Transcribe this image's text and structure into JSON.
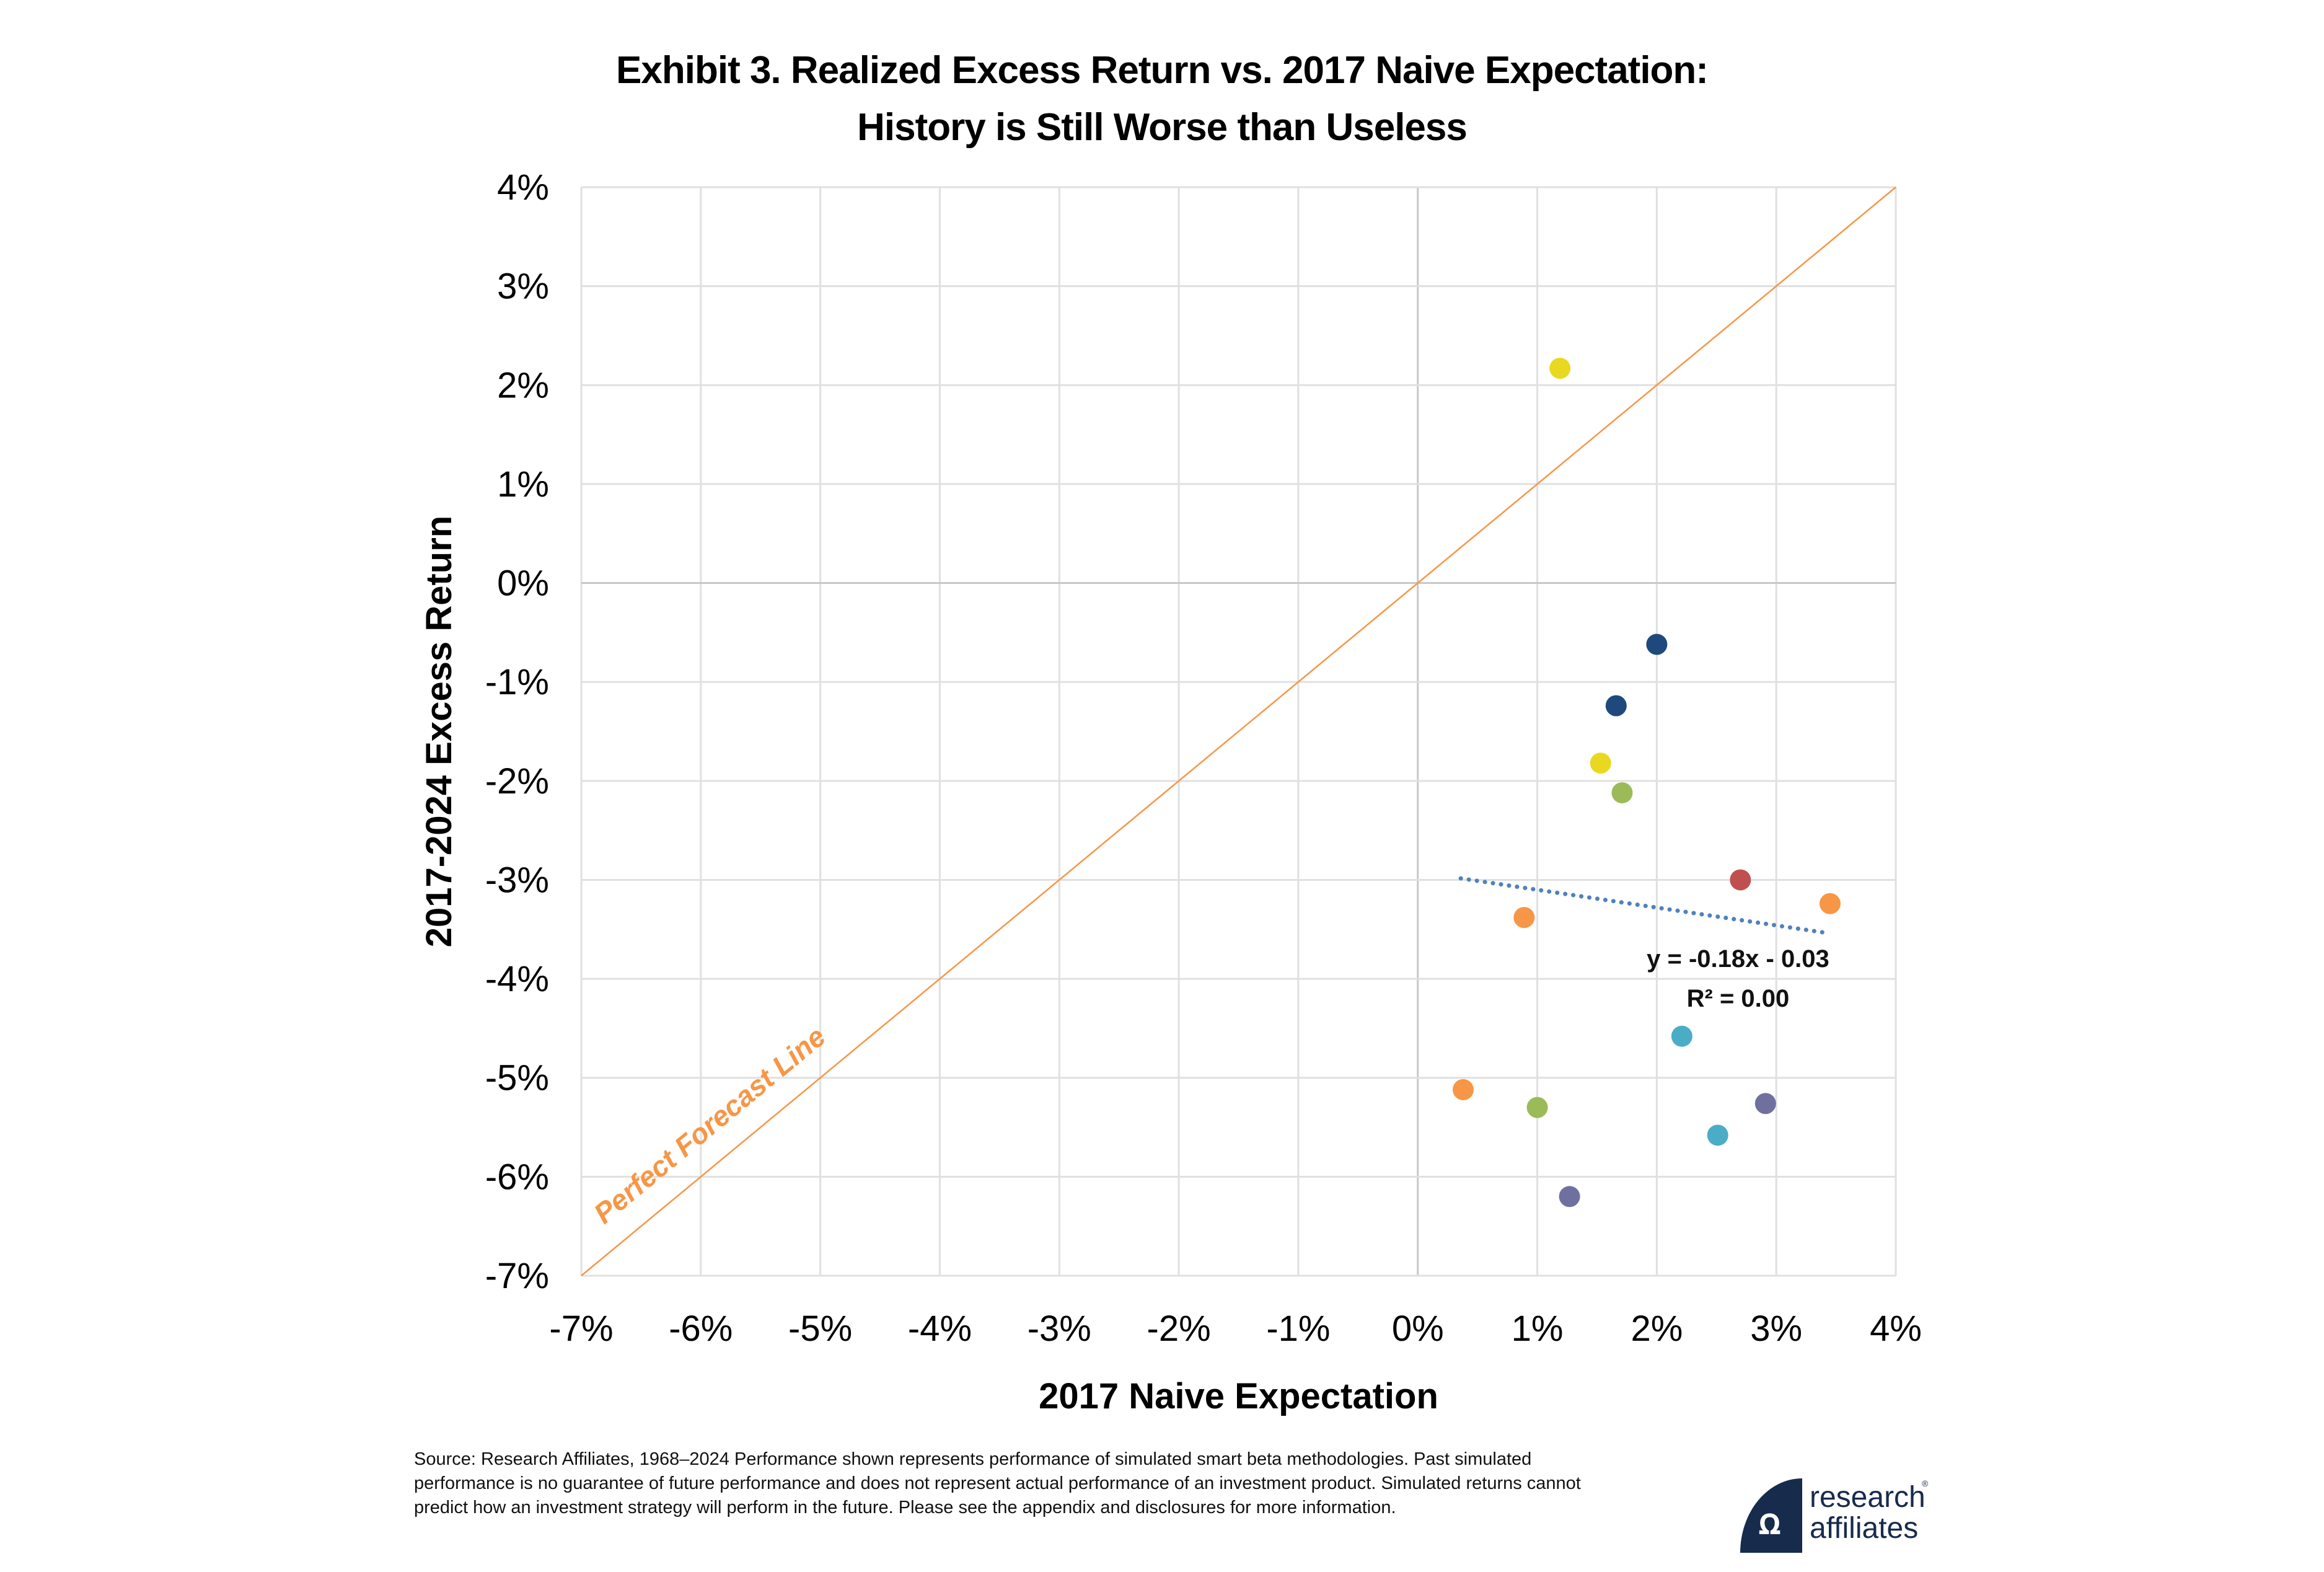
{
  "header": {
    "title_line1": "Exhibit 3. Realized Excess Return vs. 2017 Naive Expectation:",
    "title_line2": "History is Still Worse than Useless"
  },
  "chart_data": {
    "type": "scatter",
    "title": "Exhibit 3. Realized Excess Return vs. 2017 Naive Expectation: History is Still Worse than Useless",
    "xlabel": "2017 Naive Expectation",
    "ylabel": "2017-2024 Excess Return",
    "xlim": [
      -7,
      4
    ],
    "ylim": [
      -7,
      4
    ],
    "x_ticks": [
      "-7%",
      "-6%",
      "-5%",
      "-4%",
      "-3%",
      "-2%",
      "-1%",
      "0%",
      "1%",
      "2%",
      "3%",
      "4%"
    ],
    "y_ticks": [
      "4%",
      "3%",
      "2%",
      "1%",
      "0%",
      "-1%",
      "-2%",
      "-3%",
      "-4%",
      "-5%",
      "-6%",
      "-7%"
    ],
    "grid": true,
    "units": "percent",
    "points": [
      {
        "x": 1.19,
        "y": 2.17,
        "color": "#E8D920"
      },
      {
        "x": 2.0,
        "y": -0.62,
        "color": "#1F497D"
      },
      {
        "x": 1.66,
        "y": -1.24,
        "color": "#1F497D"
      },
      {
        "x": 1.53,
        "y": -1.82,
        "color": "#E8D920"
      },
      {
        "x": 1.71,
        "y": -2.12,
        "color": "#9BBB59"
      },
      {
        "x": 2.7,
        "y": -3.0,
        "color": "#C0504D"
      },
      {
        "x": 3.45,
        "y": -3.24,
        "color": "#F79646"
      },
      {
        "x": 0.89,
        "y": -3.38,
        "color": "#F79646"
      },
      {
        "x": 2.21,
        "y": -4.58,
        "color": "#4BACC6"
      },
      {
        "x": 0.38,
        "y": -5.12,
        "color": "#F79646"
      },
      {
        "x": 1.0,
        "y": -5.3,
        "color": "#9BBB59"
      },
      {
        "x": 2.91,
        "y": -5.26,
        "color": "#7070A0"
      },
      {
        "x": 2.51,
        "y": -5.58,
        "color": "#4BACC6"
      },
      {
        "x": 1.27,
        "y": -6.2,
        "color": "#7070A0"
      }
    ],
    "reference_line": {
      "label": "Perfect Forecast Line",
      "from": [
        -7,
        -7
      ],
      "to": [
        4,
        4
      ],
      "color": "#F79646"
    },
    "trendline": {
      "equation": "y = -0.18x - 0.03",
      "r_squared_label": "R² = 0.00",
      "x_range": [
        0.36,
        3.41
      ],
      "slope": -0.18,
      "intercept_pct": -2.92,
      "color": "#4F81BD",
      "style": "dotted"
    }
  },
  "footnote": "Source: Research Affiliates, 1968–2024 Performance shown represents performance of simulated smart beta methodologies. Past simulated performance is no guarantee of future performance and does not represent actual performance of an investment product. Simulated returns cannot predict how an investment strategy will perform in the future. Please see the appendix and disclosures for more information.",
  "logo": {
    "line1": "research",
    "line2": "affiliates",
    "glyph": "ꭥ",
    "registered": "®",
    "color": "#172B4D"
  }
}
